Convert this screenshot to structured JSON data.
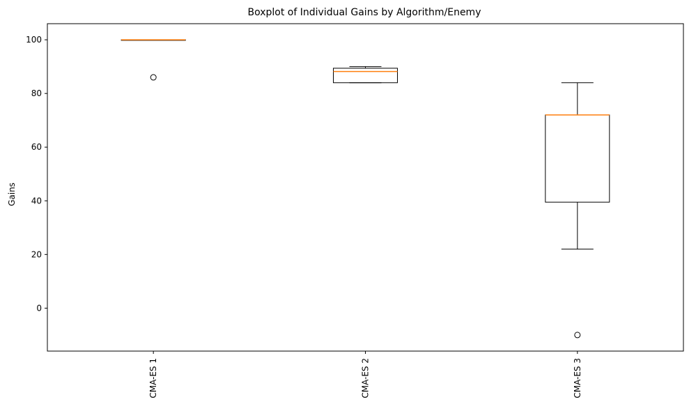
{
  "chart_data": {
    "type": "boxplot",
    "title": "Boxplot of Individual Gains by Algorithm/Enemy",
    "xlabel": "",
    "ylabel": "Gains",
    "ylim": [
      -16,
      106
    ],
    "yticks": [
      0,
      20,
      40,
      60,
      80,
      100
    ],
    "grid": false,
    "legend": "none",
    "colors": {
      "box": "#000000",
      "median": "#ff7f0e"
    },
    "categories": [
      "CMA-ES 1",
      "CMA-ES 2",
      "CMA-ES 3"
    ],
    "boxes": [
      {
        "name": "CMA-ES 1",
        "whisker_low": 99.9,
        "q1": 99.9,
        "median": 100,
        "q3": 100,
        "whisker_high": 100,
        "outliers": [
          86
        ]
      },
      {
        "name": "CMA-ES 2",
        "whisker_low": 84,
        "q1": 84,
        "median": 88.2,
        "q3": 89.4,
        "whisker_high": 90,
        "outliers": []
      },
      {
        "name": "CMA-ES 3",
        "whisker_low": 22,
        "q1": 39.5,
        "median": 72,
        "q3": 72,
        "whisker_high": 84,
        "outliers": [
          -10
        ]
      }
    ]
  }
}
